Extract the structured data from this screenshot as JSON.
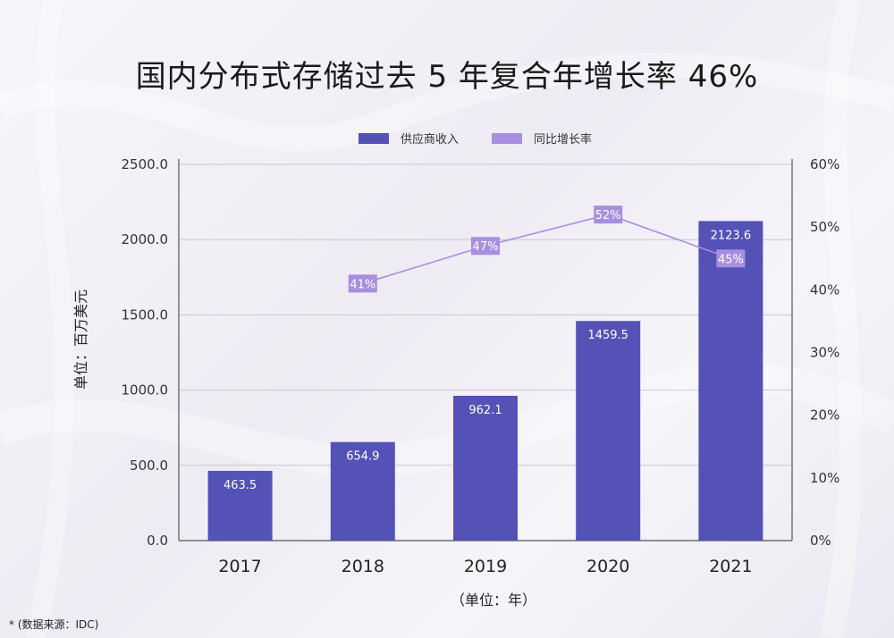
{
  "title": "国内分布式存储过去 5 年复合年增长率 46%",
  "source_note": "* (数据来源：IDC)",
  "colors": {
    "bar": "#5451b7",
    "line": "#a78fe0",
    "axis": "#555555",
    "grid": "#c9c5d2"
  },
  "chart_data": {
    "type": "bar",
    "categories": [
      "2017",
      "2018",
      "2019",
      "2020",
      "2021"
    ],
    "series": [
      {
        "name": "供应商收入",
        "type": "bar",
        "axis": "left",
        "values": [
          463.5,
          654.9,
          962.1,
          1459.5,
          2123.6
        ],
        "labels": [
          "463.5",
          "654.9",
          "962.1",
          "1459.5",
          "2123.6"
        ]
      },
      {
        "name": "同比增长率",
        "type": "line",
        "axis": "right",
        "values": [
          null,
          41,
          47,
          52,
          45
        ],
        "labels": [
          "",
          "41%",
          "47%",
          "52%",
          "45%"
        ]
      }
    ],
    "ylabel": "单位：百万美元",
    "xlabel": "（单位：年）",
    "ylim": [
      0,
      2500
    ],
    "y2lim": [
      0,
      60
    ],
    "yticks": [
      "0.0",
      "500.0",
      "1000.0",
      "1500.0",
      "2000.0",
      "2500.0"
    ],
    "y2ticks": [
      "0%",
      "10%",
      "20%",
      "30%",
      "40%",
      "50%",
      "60%"
    ],
    "grid": true,
    "legend_position": "top-center"
  }
}
